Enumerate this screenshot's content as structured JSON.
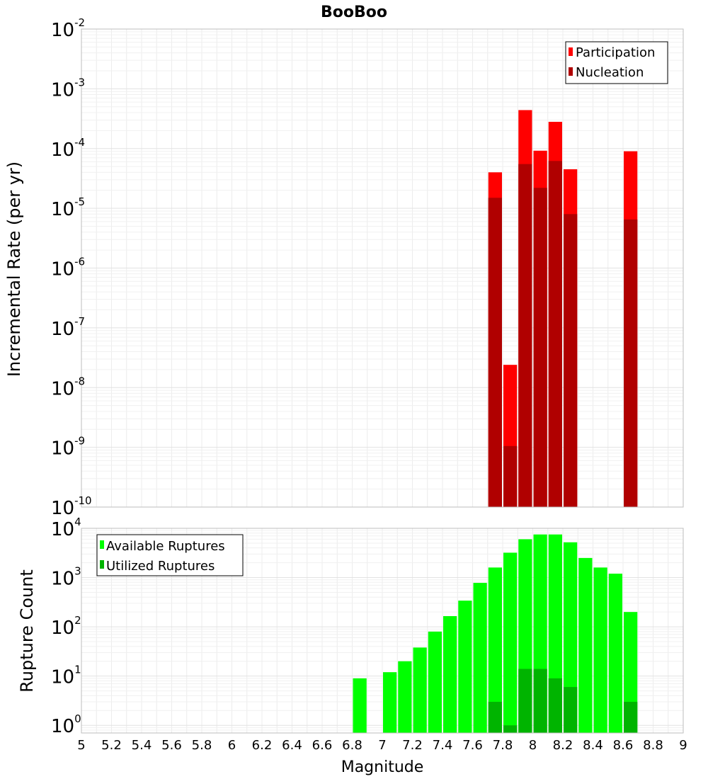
{
  "chart_data": [
    {
      "type": "bar",
      "title": "BooBoo",
      "ylabel": "Incremental Rate (per yr)",
      "xlabel": "",
      "xlim": [
        5,
        9
      ],
      "ylim": [
        1e-10,
        0.01
      ],
      "yscale": "log",
      "grid": true,
      "legend_placement": "top-right",
      "bin_width": 0.1,
      "x": [
        7.75,
        7.85,
        7.95,
        8.05,
        8.15,
        8.25,
        8.65
      ],
      "series": [
        {
          "name": "Participation",
          "color": "#ff0000",
          "values": [
            4e-05,
            2.4e-08,
            0.00044,
            9.2e-05,
            0.00028,
            4.5e-05,
            9e-05
          ]
        },
        {
          "name": "Nucleation",
          "color": "#b00000",
          "values": [
            1.5e-05,
            1.05e-09,
            5.5e-05,
            2.2e-05,
            6.2e-05,
            8e-06,
            6.5e-06
          ]
        }
      ],
      "yticks": [
        {
          "base": "10",
          "exp": "-10"
        },
        {
          "base": "10",
          "exp": "-9"
        },
        {
          "base": "10",
          "exp": "-8"
        },
        {
          "base": "10",
          "exp": "-7"
        },
        {
          "base": "10",
          "exp": "-6"
        },
        {
          "base": "10",
          "exp": "-5"
        },
        {
          "base": "10",
          "exp": "-4"
        },
        {
          "base": "10",
          "exp": "-3"
        },
        {
          "base": "10",
          "exp": "-2"
        }
      ]
    },
    {
      "type": "bar",
      "title": "",
      "ylabel": "Rupture Count",
      "xlabel": "Magnitude",
      "xlim": [
        5,
        9
      ],
      "ylim": [
        0.7,
        10000
      ],
      "yscale": "log",
      "grid": true,
      "legend_placement": "top-left",
      "bin_width": 0.1,
      "x": [
        6.85,
        7.05,
        7.15,
        7.25,
        7.35,
        7.45,
        7.55,
        7.65,
        7.75,
        7.85,
        7.95,
        8.05,
        8.15,
        8.25,
        8.35,
        8.45,
        8.55,
        8.65
      ],
      "series": [
        {
          "name": "Available Ruptures",
          "color": "#00ff00",
          "values": [
            9,
            12,
            20,
            38,
            80,
            165,
            340,
            780,
            1600,
            3200,
            6000,
            7500,
            7500,
            5200,
            2500,
            1600,
            1200,
            200
          ]
        },
        {
          "name": "Utilized Ruptures",
          "color": "#00b400",
          "values": [
            0,
            0,
            0,
            0,
            0,
            0,
            0,
            0,
            3,
            1,
            14,
            14,
            9,
            6,
            0,
            0,
            0,
            3
          ]
        }
      ],
      "yticks": [
        {
          "base": "10",
          "exp": "0"
        },
        {
          "base": "10",
          "exp": "1"
        },
        {
          "base": "10",
          "exp": "2"
        },
        {
          "base": "10",
          "exp": "3"
        },
        {
          "base": "10",
          "exp": "4"
        }
      ],
      "xticks": [
        "5",
        "5.2",
        "5.4",
        "5.6",
        "5.8",
        "6",
        "6.2",
        "6.4",
        "6.6",
        "6.8",
        "7",
        "7.2",
        "7.4",
        "7.6",
        "7.8",
        "8",
        "8.2",
        "8.4",
        "8.6",
        "8.8",
        "9"
      ]
    }
  ]
}
